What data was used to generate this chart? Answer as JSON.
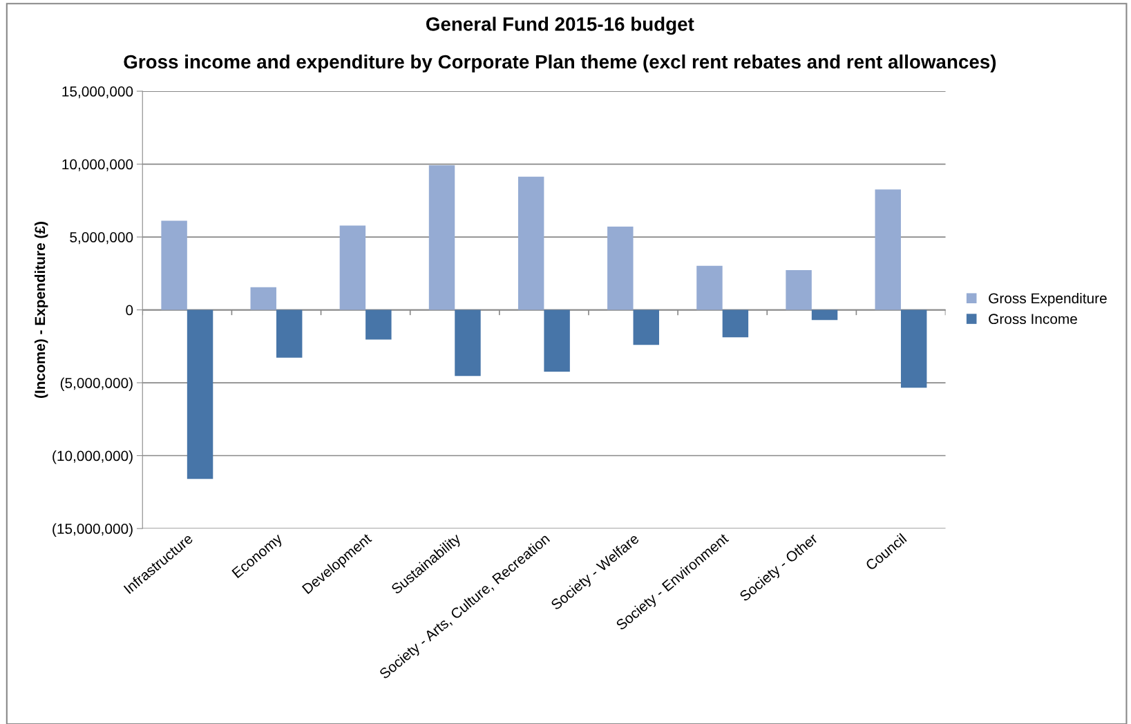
{
  "chart_data": {
    "type": "bar",
    "title": "General Fund 2015-16 budget",
    "subtitle": "Gross income and expenditure by Corporate Plan theme (excl rent rebates and rent allowances)",
    "ylabel": "(Income) - Expenditure (£)",
    "categories": [
      "Infrastructure",
      "Economy",
      "Development",
      "Sustainability",
      "Society - Arts, Culture, Recreation",
      "Society - Welfare",
      "Society - Environment",
      "Society - Other",
      "Council"
    ],
    "series": [
      {
        "name": "Gross Expenditure",
        "color": "#95abd3",
        "values": [
          6120000,
          1550000,
          5790000,
          9920000,
          9140000,
          5710000,
          3020000,
          2730000,
          8260000
        ]
      },
      {
        "name": "Gross Income",
        "color": "#4775a8",
        "values": [
          -11600000,
          -3280000,
          -2030000,
          -4530000,
          -4240000,
          -2400000,
          -1880000,
          -700000,
          -5340000
        ]
      }
    ],
    "ylim": [
      -15000000,
      15000000
    ],
    "yticks": [
      {
        "value": -15000000,
        "label": "(15,000,000)"
      },
      {
        "value": -10000000,
        "label": "(10,000,000)"
      },
      {
        "value": -5000000,
        "label": "(5,000,000)"
      },
      {
        "value": 0,
        "label": "0"
      },
      {
        "value": 5000000,
        "label": "5,000,000"
      },
      {
        "value": 10000000,
        "label": "10,000,000"
      },
      {
        "value": 15000000,
        "label": "15,000,000"
      }
    ],
    "grid": "y",
    "legend": "right"
  }
}
